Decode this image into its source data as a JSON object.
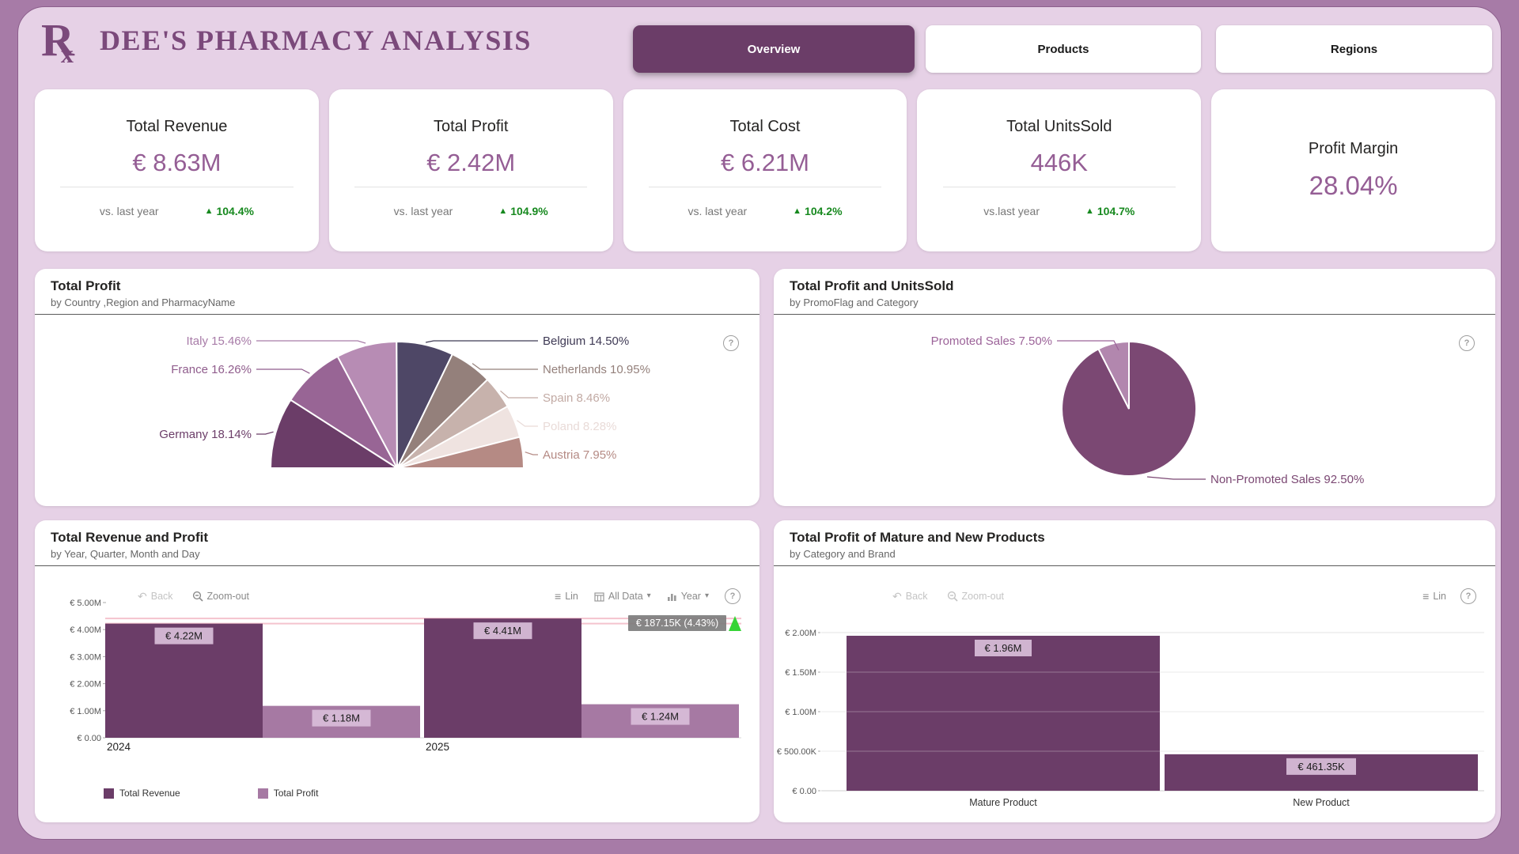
{
  "header": {
    "logo_r": "R",
    "logo_x": "x",
    "title": "DEE'S PHARMACY ANALYSIS",
    "tabs": [
      {
        "label": "Overview",
        "active": true
      },
      {
        "label": "Products",
        "active": false
      },
      {
        "label": "Regions",
        "active": false
      }
    ]
  },
  "kpis": [
    {
      "title": "Total Revenue",
      "value": "€ 8.63M",
      "vs_label": "vs. last year",
      "delta": "104.4%"
    },
    {
      "title": "Total Profit",
      "value": "€ 2.42M",
      "vs_label": "vs. last year",
      "delta": "104.9%"
    },
    {
      "title": "Total Cost",
      "value": "€ 6.21M",
      "vs_label": "vs. last year",
      "delta": "104.2%"
    },
    {
      "title": "Total UnitsSold",
      "value": "446K",
      "vs_label": "vs.last year",
      "delta": "104.7%"
    },
    {
      "title": "Profit Margin",
      "value": "28.04%"
    }
  ],
  "toolbar": {
    "back": "Back",
    "zoom_out": "Zoom-out",
    "lin": "Lin",
    "all_data": "All Data",
    "year": "Year"
  },
  "icons": {
    "up_arrow": "▲",
    "back": "↶",
    "list": "≡",
    "caret": "▾",
    "help": "?"
  },
  "colors": {
    "outer_bg": "#a77ba7",
    "canvas_bg": "#e6d1e6",
    "brand_dark": "#6b3d68",
    "brand_light": "#a679a3",
    "kpi_value": "#955e95",
    "green": "#17891f",
    "pink_line": "#f4c3ce",
    "tooltip_bg": "#7d7d7d",
    "label_box_bg": "#d9bed9"
  },
  "chart_data": [
    {
      "type": "pie",
      "variant": "half",
      "title": "Total Profit",
      "subtitle": "by Country ,Region and PharmacyName",
      "labels": [
        "Germany",
        "France",
        "Italy",
        "Belgium",
        "Netherlands",
        "Spain",
        "Poland",
        "Austria"
      ],
      "values": [
        18.14,
        16.26,
        15.46,
        14.5,
        10.95,
        8.46,
        8.28,
        7.95
      ],
      "display": [
        "Germany 18.14%",
        "France 16.26%",
        "Italy 15.46%",
        "Belgium 14.50%",
        "Netherlands 10.95%",
        "Spain 8.46%",
        "Poland 8.28%",
        "Austria 7.95%"
      ],
      "colors": [
        "#6b3d68",
        "#986595",
        "#b78cb4",
        "#4e4766",
        "#94807b",
        "#c7b2ac",
        "#efe3e0",
        "#b58a84"
      ],
      "label_colors": [
        "#6b3d68",
        "#8f5c8c",
        "#a87ca8",
        "#3f3a55",
        "#94807b",
        "#c2aaa4",
        "#e9dbd8",
        "#b58a84"
      ],
      "legend_position": "callout"
    },
    {
      "type": "pie",
      "title": "Total Profit and UnitsSold",
      "subtitle": "by PromoFlag and Category",
      "labels": [
        "Promoted Sales",
        "Non-Promoted Sales"
      ],
      "values": [
        7.5,
        92.5
      ],
      "display": [
        "Promoted Sales 7.50%",
        "Non-Promoted Sales 92.50%"
      ],
      "colors": [
        "#b287ae",
        "#7b4873"
      ],
      "label_colors": [
        "#9c6399",
        "#7b4873"
      ],
      "legend_position": "callout"
    },
    {
      "type": "bar",
      "title": "Total Revenue and Profit",
      "subtitle": "by Year, Quarter, Month and Day",
      "categories": [
        "2024",
        "2025"
      ],
      "series": [
        {
          "name": "Total Revenue",
          "values": [
            4.22,
            4.41
          ],
          "labels": [
            "€ 4.22M",
            "€ 4.41M"
          ],
          "color": "#6b3d68"
        },
        {
          "name": "Total Profit",
          "values": [
            1.18,
            1.24
          ],
          "labels": [
            "€ 1.18M",
            "€ 1.24M"
          ],
          "color": "#a679a3"
        }
      ],
      "ylabel_ticks": [
        "€ 5.00M",
        "€ 4.00M",
        "€ 3.00M",
        "€ 2.00M",
        "€ 1.00M",
        "€ 0.00"
      ],
      "ylim": [
        0,
        5
      ],
      "unit": "M EUR",
      "grid": false,
      "legend_position": "bottom",
      "reference_lines": [
        4.41,
        4.22
      ],
      "annotation": {
        "text": "€ 187.15K (4.43%)",
        "direction": "up"
      }
    },
    {
      "type": "bar",
      "title": "Total Profit of Mature and New Products",
      "subtitle": "by Category and Brand",
      "categories": [
        "Mature Product",
        "New Product"
      ],
      "values": [
        1.96,
        0.46135
      ],
      "labels": [
        "€ 1.96M",
        "€ 461.35K"
      ],
      "color": "#6b3d68",
      "ylabel_ticks": [
        "€ 2.00M",
        "€ 1.50M",
        "€ 1.00M",
        "€ 500.00K",
        "€ 0.00"
      ],
      "ylim": [
        0,
        2
      ],
      "unit": "M EUR",
      "grid": true,
      "legend_position": "none"
    }
  ]
}
